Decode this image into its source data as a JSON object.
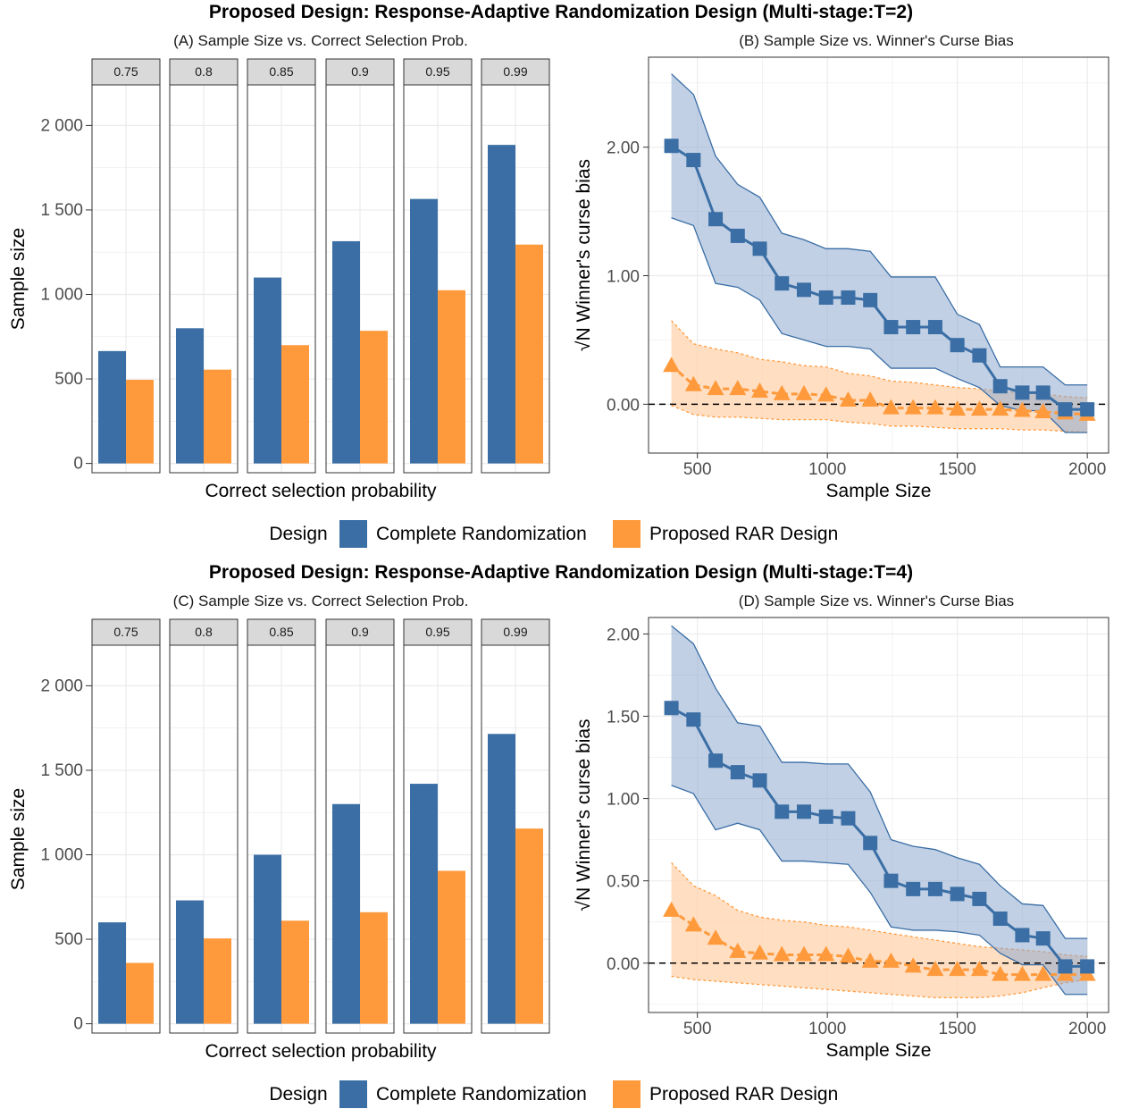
{
  "colors": {
    "cr": "#3A6EA5",
    "rar": "#FF9A3C",
    "cr_fill": "#8EAAD0",
    "rar_fill": "#FFD3AE",
    "strip": "#D9D9D9",
    "grid": "#EBEBEB",
    "panel_border": "#333333"
  },
  "legend": {
    "title": "Design",
    "items": [
      "Complete Randomization",
      "Proposed RAR Design"
    ]
  },
  "panels": [
    {
      "title": "Proposed Design: Response-Adaptive Randomization Design (Multi-stage:T=2)",
      "bar_chart": {
        "subtitle": "(A) Sample Size vs. Correct Selection Prob.",
        "xlabel": "Correct selection probability",
        "ylabel": "Sample size",
        "y_ticks": [
          0,
          500,
          1000,
          1500,
          2000
        ],
        "y_tick_labels": [
          "0",
          "500",
          "1 000",
          "1 500",
          "2 000"
        ]
      },
      "line_chart": {
        "subtitle": "(B) Sample Size vs. Winner's Curse Bias",
        "xlabel": "Sample Size",
        "ylabel_radical": "√N",
        "ylabel_text": " Winner's curse bias",
        "y_ticks": [
          0,
          1,
          2
        ],
        "y_tick_labels": [
          "0.00",
          "1.00",
          "2.00"
        ],
        "x_ticks": [
          500,
          1000,
          1500,
          2000
        ],
        "x_tick_labels": [
          "500",
          "1000",
          "1500",
          "2000"
        ]
      }
    },
    {
      "title": "Proposed Design: Response-Adaptive Randomization Design (Multi-stage:T=4)",
      "bar_chart": {
        "subtitle": "(C) Sample Size vs. Correct Selection Prob.",
        "xlabel": "Correct selection probability",
        "ylabel": "Sample size",
        "y_ticks": [
          0,
          500,
          1000,
          1500,
          2000
        ],
        "y_tick_labels": [
          "0",
          "500",
          "1 000",
          "1 500",
          "2 000"
        ]
      },
      "line_chart": {
        "subtitle": "(D) Sample Size vs. Winner's Curse Bias",
        "xlabel": "Sample Size",
        "ylabel_radical": "√N",
        "ylabel_text": " Winner's curse bias",
        "y_ticks": [
          0,
          0.5,
          1,
          1.5,
          2
        ],
        "y_tick_labels": [
          "0.00",
          "0.50",
          "1.00",
          "1.50",
          "2.00"
        ],
        "x_ticks": [
          500,
          1000,
          1500,
          2000
        ],
        "x_tick_labels": [
          "500",
          "1000",
          "1500",
          "2000"
        ]
      }
    }
  ],
  "chart_data": [
    {
      "type": "bar",
      "facets": [
        "0.75",
        "0.8",
        "0.85",
        "0.9",
        "0.95",
        "0.99"
      ],
      "series": [
        {
          "name": "Complete Randomization",
          "values": [
            665,
            800,
            1100,
            1315,
            1565,
            1885
          ]
        },
        {
          "name": "Proposed RAR Design",
          "values": [
            495,
            555,
            700,
            785,
            1025,
            1295
          ]
        }
      ],
      "ylim": [
        -55,
        2240
      ]
    },
    {
      "type": "line",
      "x": [
        400,
        485,
        570,
        655,
        740,
        825,
        910,
        995,
        1080,
        1165,
        1245,
        1330,
        1415,
        1500,
        1585,
        1665,
        1750,
        1830,
        1915,
        2000
      ],
      "series": [
        {
          "name": "Complete Randomization",
          "values": [
            2.01,
            1.9,
            1.44,
            1.31,
            1.21,
            0.94,
            0.89,
            0.83,
            0.83,
            0.81,
            0.6,
            0.6,
            0.6,
            0.46,
            0.38,
            0.14,
            0.09,
            0.09,
            -0.04,
            -0.04
          ],
          "upper": [
            2.57,
            2.41,
            1.93,
            1.71,
            1.61,
            1.33,
            1.28,
            1.21,
            1.21,
            1.19,
            0.99,
            0.99,
            0.99,
            0.7,
            0.62,
            0.29,
            0.29,
            0.29,
            0.15,
            0.15
          ],
          "lower": [
            1.45,
            1.39,
            0.94,
            0.91,
            0.81,
            0.55,
            0.5,
            0.45,
            0.45,
            0.43,
            0.28,
            0.28,
            0.28,
            0.2,
            0.13,
            -0.01,
            -0.05,
            -0.05,
            -0.22,
            -0.22
          ]
        },
        {
          "name": "Proposed RAR Design",
          "values": [
            0.3,
            0.15,
            0.12,
            0.12,
            0.1,
            0.08,
            0.08,
            0.07,
            0.03,
            0.03,
            -0.03,
            -0.03,
            -0.03,
            -0.04,
            -0.04,
            -0.04,
            -0.05,
            -0.06,
            -0.07,
            -0.08
          ],
          "upper": [
            0.65,
            0.47,
            0.43,
            0.4,
            0.35,
            0.33,
            0.3,
            0.29,
            0.24,
            0.22,
            0.18,
            0.17,
            0.15,
            0.13,
            0.12,
            0.1,
            0.09,
            0.08,
            0.06,
            0.05
          ],
          "lower": [
            -0.01,
            -0.08,
            -0.1,
            -0.1,
            -0.11,
            -0.12,
            -0.12,
            -0.12,
            -0.14,
            -0.15,
            -0.17,
            -0.17,
            -0.18,
            -0.19,
            -0.19,
            -0.19,
            -0.2,
            -0.2,
            -0.21,
            -0.22
          ]
        }
      ],
      "xlim": [
        312,
        2082
      ],
      "ylim": [
        -0.38,
        2.7
      ],
      "reference_line": 0
    },
    {
      "type": "bar",
      "facets": [
        "0.75",
        "0.8",
        "0.85",
        "0.9",
        "0.95",
        "0.99"
      ],
      "series": [
        {
          "name": "Complete Randomization",
          "values": [
            600,
            730,
            1000,
            1300,
            1420,
            1715
          ]
        },
        {
          "name": "Proposed RAR Design",
          "values": [
            360,
            505,
            610,
            660,
            905,
            1155
          ]
        }
      ],
      "ylim": [
        -55,
        2240
      ]
    },
    {
      "type": "line",
      "x": [
        400,
        485,
        570,
        655,
        740,
        825,
        910,
        995,
        1080,
        1165,
        1245,
        1330,
        1415,
        1500,
        1585,
        1665,
        1750,
        1830,
        1915,
        2000
      ],
      "series": [
        {
          "name": "Complete Randomization",
          "values": [
            1.55,
            1.48,
            1.23,
            1.16,
            1.11,
            0.92,
            0.92,
            0.89,
            0.88,
            0.73,
            0.5,
            0.45,
            0.45,
            0.42,
            0.39,
            0.27,
            0.17,
            0.15,
            -0.02,
            -0.02
          ],
          "upper": [
            2.05,
            1.94,
            1.67,
            1.46,
            1.44,
            1.22,
            1.22,
            1.21,
            1.21,
            1.04,
            0.75,
            0.71,
            0.69,
            0.64,
            0.6,
            0.47,
            0.36,
            0.35,
            0.15,
            0.15
          ],
          "lower": [
            1.08,
            1.03,
            0.81,
            0.85,
            0.81,
            0.62,
            0.62,
            0.61,
            0.6,
            0.43,
            0.22,
            0.2,
            0.2,
            0.19,
            0.17,
            0.06,
            -0.01,
            -0.01,
            -0.19,
            -0.19
          ]
        },
        {
          "name": "Proposed RAR Design",
          "values": [
            0.32,
            0.23,
            0.15,
            0.07,
            0.06,
            0.05,
            0.05,
            0.05,
            0.04,
            0.01,
            0.01,
            -0.02,
            -0.04,
            -0.04,
            -0.04,
            -0.07,
            -0.07,
            -0.07,
            -0.07,
            -0.07
          ],
          "upper": [
            0.61,
            0.47,
            0.41,
            0.32,
            0.28,
            0.26,
            0.25,
            0.23,
            0.22,
            0.2,
            0.18,
            0.16,
            0.14,
            0.12,
            0.1,
            0.09,
            0.08,
            0.07,
            0.05,
            0.04
          ],
          "lower": [
            -0.08,
            -0.1,
            -0.11,
            -0.12,
            -0.13,
            -0.14,
            -0.15,
            -0.16,
            -0.17,
            -0.18,
            -0.19,
            -0.2,
            -0.21,
            -0.21,
            -0.21,
            -0.2,
            -0.18,
            -0.15,
            -0.12,
            -0.1
          ]
        }
      ],
      "xlim": [
        312,
        2082
      ],
      "ylim": [
        -0.3,
        2.1
      ],
      "reference_line": 0
    }
  ]
}
